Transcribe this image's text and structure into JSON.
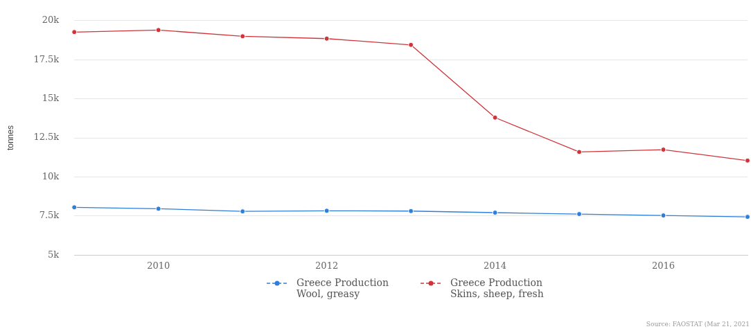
{
  "chart_data": {
    "type": "line",
    "ylabel": "tonnes",
    "x": [
      2009,
      2010,
      2011,
      2012,
      2013,
      2014,
      2015,
      2016,
      2017
    ],
    "series": [
      {
        "name": "Greece Production Wool, greasy",
        "color": "#2f7ed8",
        "values": [
          8060,
          7970,
          7800,
          7840,
          7820,
          7720,
          7630,
          7540,
          7450
        ]
      },
      {
        "name": "Greece Production Skins, sheep, fresh",
        "color": "#d0343a",
        "values": [
          19270,
          19400,
          19000,
          18850,
          18450,
          13800,
          11600,
          11750,
          11050
        ]
      }
    ],
    "xlim": [
      2009,
      2017
    ],
    "xticks": [
      2010,
      2012,
      2014,
      2016
    ],
    "ylim": [
      5000,
      20000
    ],
    "yticks": [
      {
        "value": 5000,
        "label": "5k"
      },
      {
        "value": 7500,
        "label": "7.5k"
      },
      {
        "value": 10000,
        "label": "10k"
      },
      {
        "value": 12500,
        "label": "12.5k"
      },
      {
        "value": 15000,
        "label": "15k"
      },
      {
        "value": 17500,
        "label": "17.5k"
      },
      {
        "value": 20000,
        "label": "20k"
      }
    ],
    "grid": "y",
    "legend": "bottom",
    "marker": "circle",
    "line_style": "solid",
    "annotations": [
      "Source: FAOSTAT (Mar 21, 2021"
    ]
  }
}
